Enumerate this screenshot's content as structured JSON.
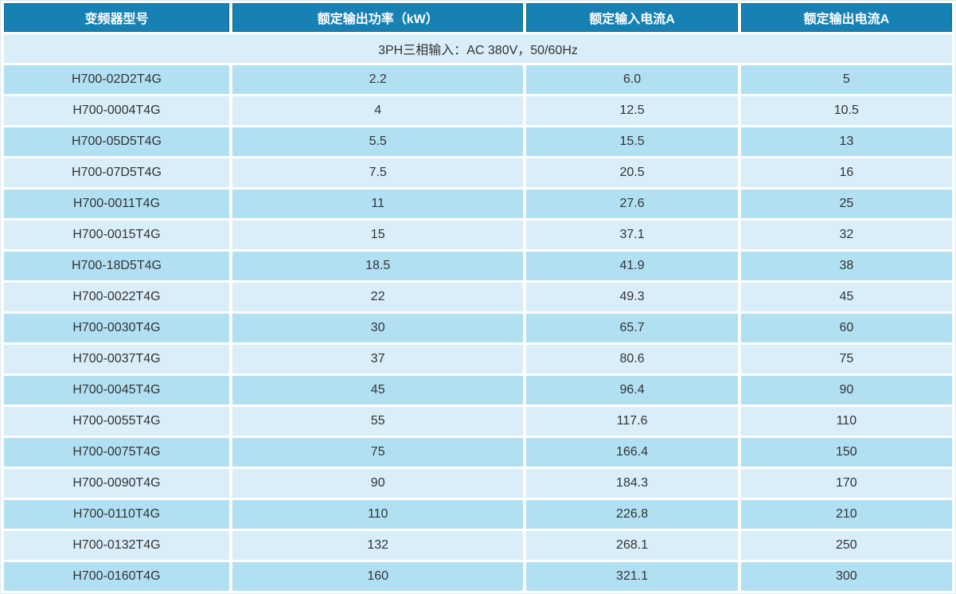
{
  "table": {
    "columns": [
      "变频器型号",
      "额定输出功率（kW）",
      "额定输入电流A",
      "额定输出电流A"
    ],
    "group_header": "3PH三相输入：AC 380V，50/60Hz",
    "rows": [
      {
        "model": "H700-02D2T4G",
        "power_kw": "2.2",
        "input_a": "6.0",
        "output_a": "5"
      },
      {
        "model": "H700-0004T4G",
        "power_kw": "4",
        "input_a": "12.5",
        "output_a": "10.5"
      },
      {
        "model": "H700-05D5T4G",
        "power_kw": "5.5",
        "input_a": "15.5",
        "output_a": "13"
      },
      {
        "model": "H700-07D5T4G",
        "power_kw": "7.5",
        "input_a": "20.5",
        "output_a": "16"
      },
      {
        "model": "H700-0011T4G",
        "power_kw": "11",
        "input_a": "27.6",
        "output_a": "25"
      },
      {
        "model": "H700-0015T4G",
        "power_kw": "15",
        "input_a": "37.1",
        "output_a": "32"
      },
      {
        "model": "H700-18D5T4G",
        "power_kw": "18.5",
        "input_a": "41.9",
        "output_a": "38"
      },
      {
        "model": "H700-0022T4G",
        "power_kw": "22",
        "input_a": "49.3",
        "output_a": "45"
      },
      {
        "model": "H700-0030T4G",
        "power_kw": "30",
        "input_a": "65.7",
        "output_a": "60"
      },
      {
        "model": "H700-0037T4G",
        "power_kw": "37",
        "input_a": "80.6",
        "output_a": "75"
      },
      {
        "model": "H700-0045T4G",
        "power_kw": "45",
        "input_a": "96.4",
        "output_a": "90"
      },
      {
        "model": "H700-0055T4G",
        "power_kw": "55",
        "input_a": "117.6",
        "output_a": "110"
      },
      {
        "model": "H700-0075T4G",
        "power_kw": "75",
        "input_a": "166.4",
        "output_a": "150"
      },
      {
        "model": "H700-0090T4G",
        "power_kw": "90",
        "input_a": "184.3",
        "output_a": "170"
      },
      {
        "model": "H700-0110T4G",
        "power_kw": "110",
        "input_a": "226.8",
        "output_a": "210"
      },
      {
        "model": "H700-0132T4G",
        "power_kw": "132",
        "input_a": "268.1",
        "output_a": "250"
      },
      {
        "model": "H700-0160T4G",
        "power_kw": "160",
        "input_a": "321.1",
        "output_a": "300"
      }
    ]
  },
  "colors": {
    "header_bg": "#1781b4",
    "header_border": "#0d6793",
    "header_text": "#ffffff",
    "row_dark": "#b2e0f3",
    "row_light": "#d9eef9",
    "text": "#333333",
    "outer_border": "#d9e8f1"
  }
}
